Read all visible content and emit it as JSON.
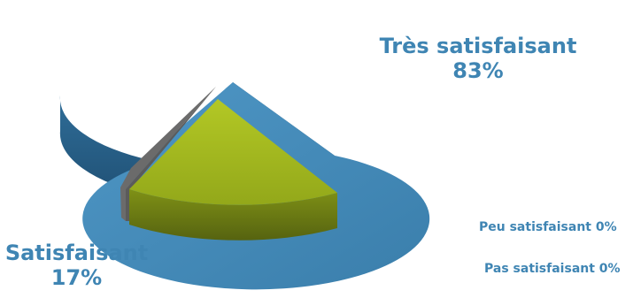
{
  "chart_data": {
    "type": "pie",
    "style": "3d-exploded",
    "slices": [
      {
        "label": "Très satisfaisant",
        "value": 83,
        "display": "83%",
        "color": "#3f85b3"
      },
      {
        "label": "Satisfaisant",
        "value": 17,
        "display": "17%",
        "color": "#9bad1c"
      },
      {
        "label": "Peu satisfaisant",
        "value": 0,
        "display": "0%",
        "color": "#7f7f7f"
      },
      {
        "label": "Pas satisfaisant",
        "value": 0,
        "display": "0%",
        "color": "#5b5b5b"
      }
    ]
  }
}
